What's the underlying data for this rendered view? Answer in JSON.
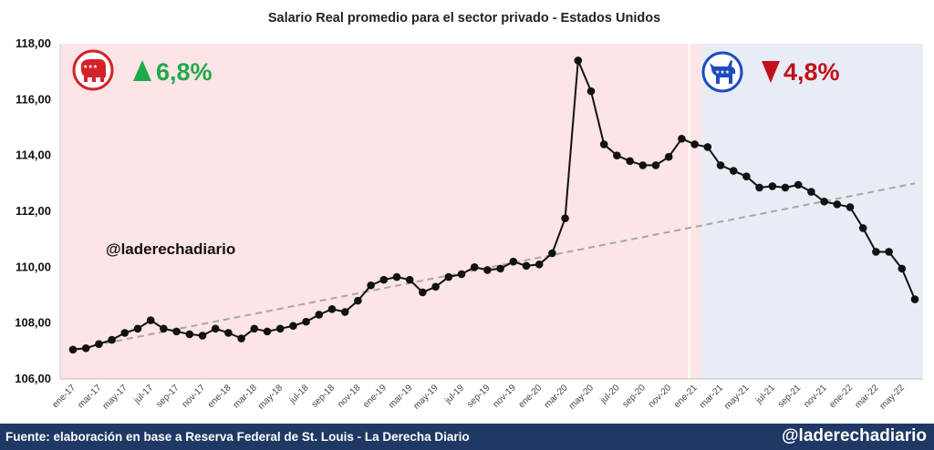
{
  "chart_data": {
    "type": "line",
    "title": "Salario Real promedio para el sector privado - Estados Unidos",
    "ylim": [
      106,
      118
    ],
    "y_ticks": [
      "106,00",
      "108,00",
      "110,00",
      "112,00",
      "114,00",
      "116,00",
      "118,00"
    ],
    "y_tick_values": [
      106,
      108,
      110,
      112,
      114,
      116,
      118
    ],
    "x_tick_labels": [
      "ene-17",
      "mar-17",
      "may-17",
      "jul-17",
      "sep-17",
      "nov-17",
      "ene-18",
      "mar-18",
      "may-18",
      "jul-18",
      "sep-18",
      "nov-18",
      "ene-19",
      "mar-19",
      "may-19",
      "jul-19",
      "sep-19",
      "nov-19",
      "ene-20",
      "mar-20",
      "may-20",
      "jul-20",
      "sep-20",
      "nov-20",
      "ene-21",
      "mar-21",
      "may-21",
      "jul-21",
      "sep-21",
      "nov-21",
      "ene-22",
      "mar-22",
      "may-22"
    ],
    "x": [
      "ene-17",
      "feb-17",
      "mar-17",
      "abr-17",
      "may-17",
      "jun-17",
      "jul-17",
      "ago-17",
      "sep-17",
      "oct-17",
      "nov-17",
      "dic-17",
      "ene-18",
      "feb-18",
      "mar-18",
      "abr-18",
      "may-18",
      "jun-18",
      "jul-18",
      "ago-18",
      "sep-18",
      "oct-18",
      "nov-18",
      "dic-18",
      "ene-19",
      "feb-19",
      "mar-19",
      "abr-19",
      "may-19",
      "jun-19",
      "jul-19",
      "ago-19",
      "sep-19",
      "oct-19",
      "nov-19",
      "dic-19",
      "ene-20",
      "feb-20",
      "mar-20",
      "abr-20",
      "may-20",
      "jun-20",
      "jul-20",
      "ago-20",
      "sep-20",
      "oct-20",
      "nov-20",
      "dic-20",
      "ene-21",
      "feb-21",
      "mar-21",
      "abr-21",
      "may-21",
      "jun-21",
      "jul-21",
      "ago-21",
      "sep-21",
      "oct-21",
      "nov-21",
      "dic-21",
      "ene-22",
      "feb-22",
      "mar-22",
      "abr-22",
      "may-22",
      "jun-22"
    ],
    "series": [
      {
        "values": [
          107.05,
          107.1,
          107.25,
          107.4,
          107.65,
          107.8,
          108.1,
          107.8,
          107.7,
          107.6,
          107.55,
          107.8,
          107.65,
          107.45,
          107.8,
          107.7,
          107.8,
          107.9,
          108.05,
          108.3,
          108.5,
          108.4,
          108.8,
          109.35,
          109.55,
          109.65,
          109.55,
          109.1,
          109.3,
          109.65,
          109.75,
          110.0,
          109.9,
          109.95,
          110.2,
          110.05,
          110.1,
          110.5,
          111.75,
          117.4,
          116.3,
          114.4,
          114.0,
          113.8,
          113.65,
          113.65,
          113.95,
          114.6,
          114.4,
          114.3,
          113.65,
          113.45,
          113.25,
          112.85,
          112.9,
          112.85,
          112.95,
          112.7,
          112.35,
          112.25,
          112.15,
          111.4,
          110.55,
          110.55,
          109.95,
          108.85
        ],
        "color": "#111111"
      }
    ],
    "trendline": {
      "start": 107.05,
      "end": 113.0,
      "color": "#a6a6a6",
      "style": "dashed"
    },
    "periods": [
      {
        "from_index": 0,
        "to_index": 48,
        "color": "#fde4e6",
        "change_text": "6,8%",
        "direction": "up",
        "change_color": "#1faa4a",
        "icon": "republican-elephant-icon",
        "icon_color": "#d3222a"
      },
      {
        "from_index": 48,
        "to_index": 65,
        "color": "#e8ecf5",
        "change_text": "4,8%",
        "direction": "down",
        "change_color": "#c0111b",
        "icon": "democratic-donkey-icon",
        "icon_color": "#1f4bbf"
      }
    ],
    "grid": false
  },
  "watermark": "@laderechadiario",
  "footer": {
    "source": "Fuente: elaboración en base a Reserva Federal de St. Louis - La Derecha Diario",
    "handle": "@laderechadiario",
    "background": "#1f3864"
  }
}
